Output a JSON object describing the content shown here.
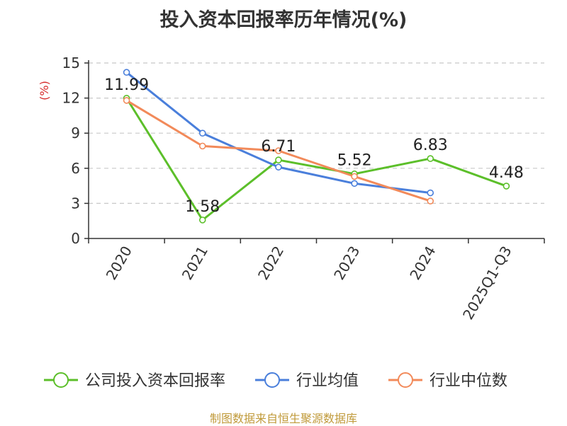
{
  "chart_data": {
    "type": "line",
    "title": "投入资本回报率历年情况(%)",
    "ylabel": "(%)",
    "xlabel": "",
    "categories": [
      "2020",
      "2021",
      "2022",
      "2023",
      "2024",
      "2025Q1-Q3"
    ],
    "ylim": [
      0,
      15
    ],
    "yticks": [
      0,
      3,
      6,
      9,
      12,
      15
    ],
    "grid": true,
    "legend_position": "bottom",
    "series": [
      {
        "name": "公司投入资本回报率",
        "color": "#5cbf2a",
        "values": [
          11.99,
          1.58,
          6.71,
          5.52,
          6.83,
          4.48
        ],
        "labels": [
          "11.99",
          "1.58",
          "6.71",
          "5.52",
          "6.83",
          "4.48"
        ]
      },
      {
        "name": "行业均值",
        "color": "#4a7fdb",
        "values": [
          14.2,
          9.0,
          6.1,
          4.7,
          3.9,
          null
        ]
      },
      {
        "name": "行业中位数",
        "color": "#f28a5a",
        "values": [
          11.8,
          7.9,
          7.5,
          5.3,
          3.2,
          null
        ]
      }
    ]
  },
  "source": "制图数据来自恒生聚源数据库"
}
